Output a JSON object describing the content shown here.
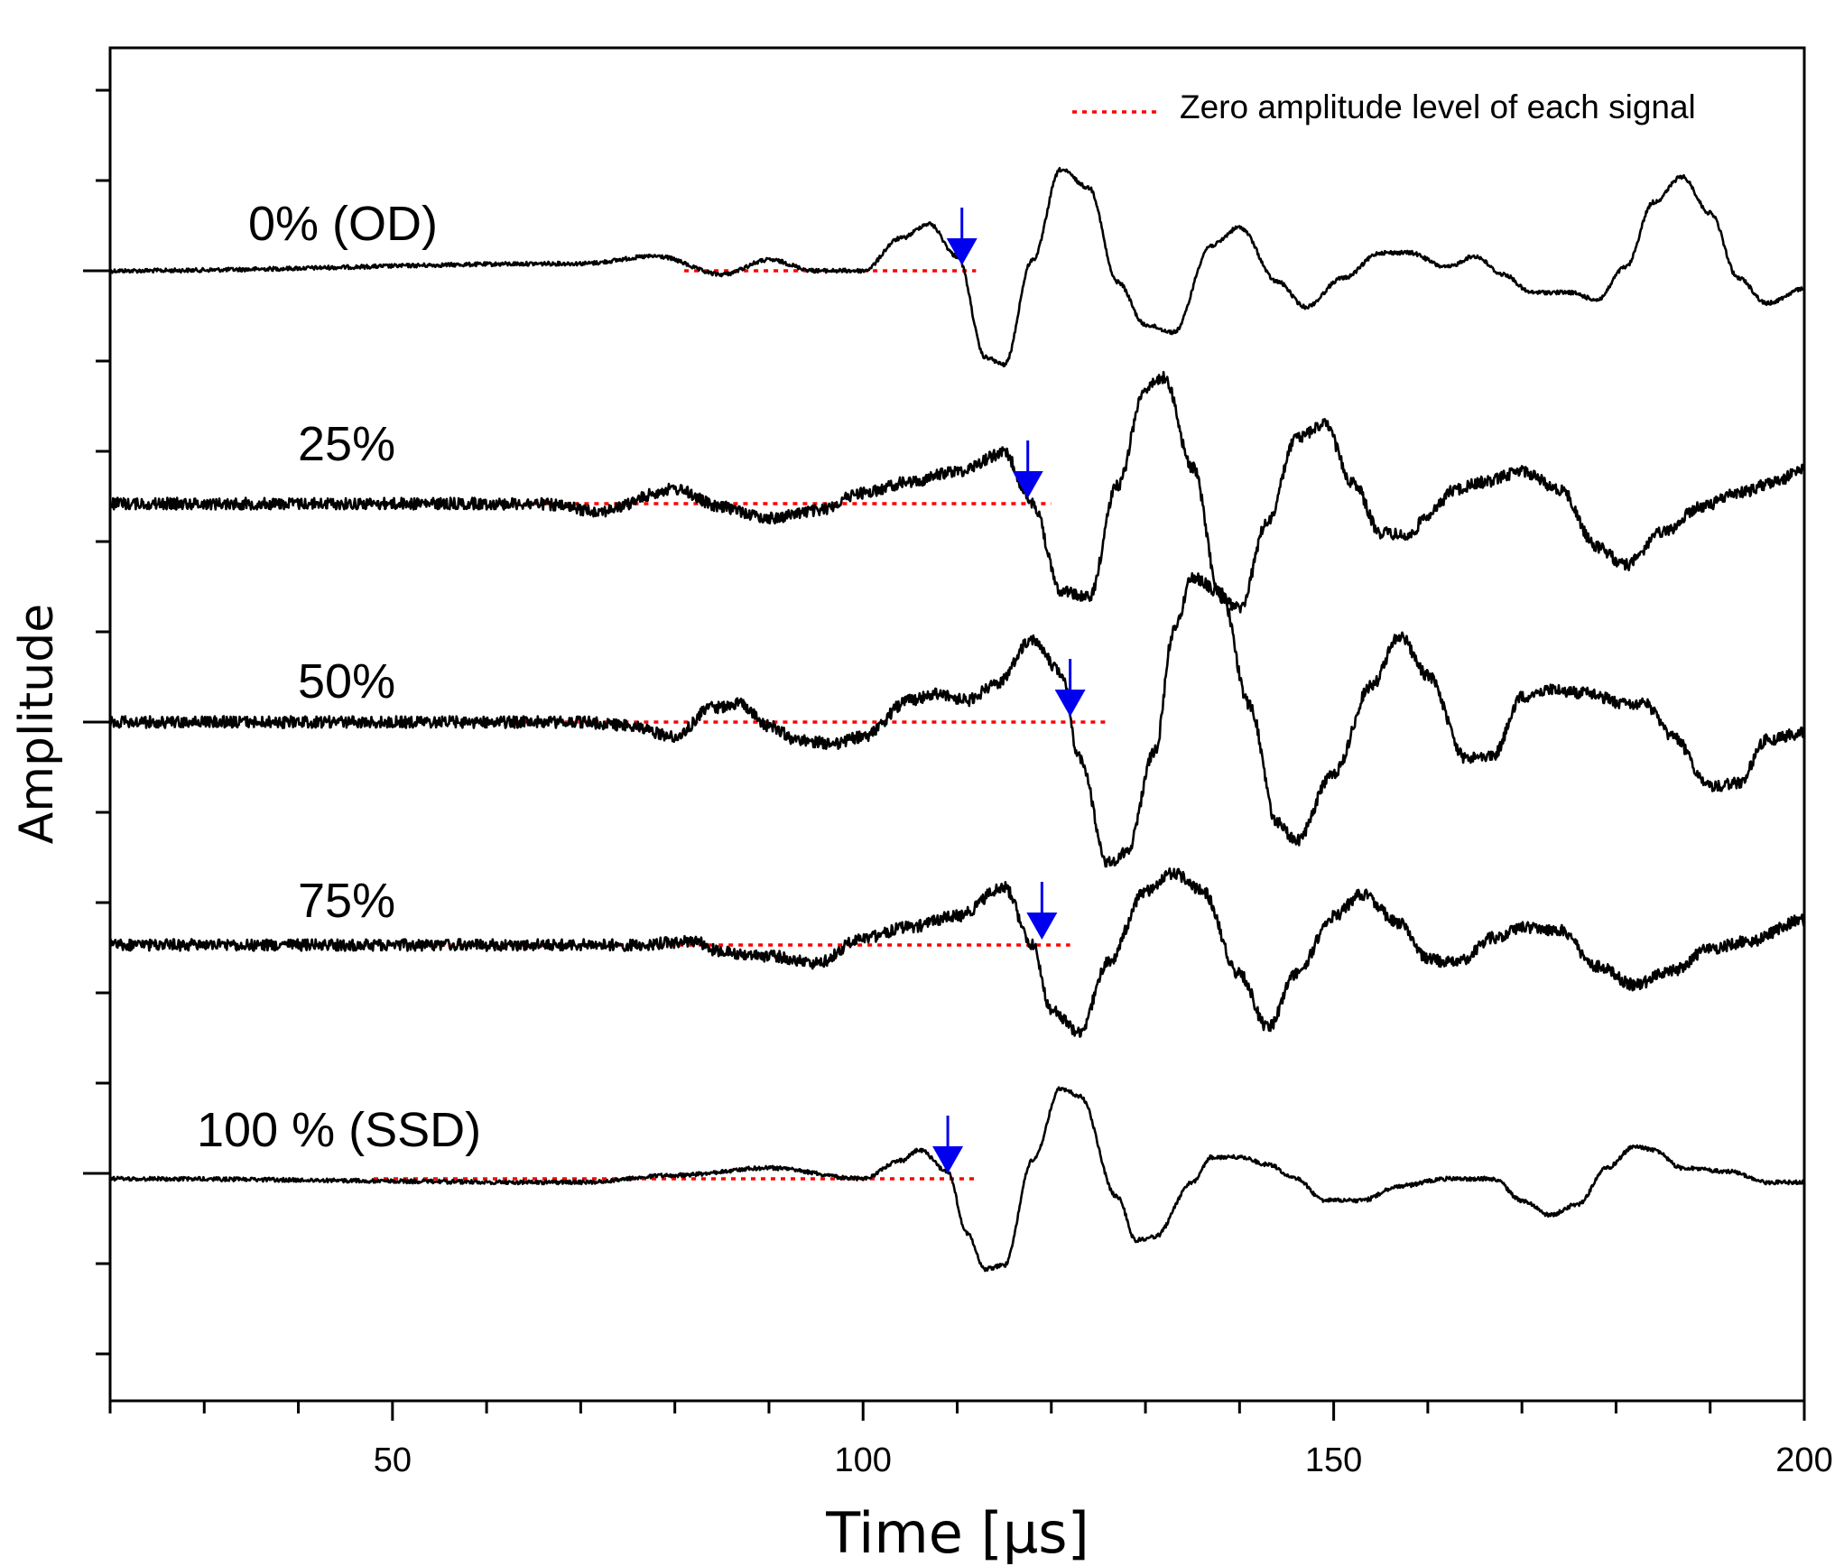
{
  "chart_data": {
    "type": "line",
    "title": "",
    "xlabel": "Time [µs]",
    "ylabel": "Amplitude",
    "xlim": [
      20,
      200
    ],
    "x_ticks": [
      50,
      100,
      150,
      200
    ],
    "x_minor_step": 10,
    "grid": false,
    "legend": {
      "position": "top-right",
      "label": "Zero amplitude level of each signal",
      "style": "red dotted line"
    },
    "series": [
      {
        "name": "0% (OD)",
        "zero_line_range": [
          81,
          112
        ],
        "arrow_time": 110.5,
        "points": [
          [
            20,
            0
          ],
          [
            70,
            0.2
          ],
          [
            78,
            0.4
          ],
          [
            85,
            -0.1
          ],
          [
            90,
            0.3
          ],
          [
            95,
            0
          ],
          [
            100,
            0
          ],
          [
            104,
            0.9
          ],
          [
            107,
            1.3
          ],
          [
            110,
            0.4
          ],
          [
            113,
            -2.4
          ],
          [
            115,
            -2.6
          ],
          [
            118,
            0.3
          ],
          [
            121,
            2.8
          ],
          [
            124,
            2.3
          ],
          [
            127,
            -0.3
          ],
          [
            130,
            -1.5
          ],
          [
            133,
            -1.7
          ],
          [
            137,
            0.7
          ],
          [
            140,
            1.2
          ],
          [
            144,
            -0.3
          ],
          [
            147,
            -1.0
          ],
          [
            151,
            -0.2
          ],
          [
            155,
            0.5
          ],
          [
            158,
            0.5
          ],
          [
            162,
            0.1
          ],
          [
            165,
            0.4
          ],
          [
            168,
            -0.1
          ],
          [
            171,
            -0.6
          ],
          [
            175,
            -0.6
          ],
          [
            178,
            -0.8
          ],
          [
            181,
            0.1
          ],
          [
            184,
            1.9
          ],
          [
            187,
            2.6
          ],
          [
            190,
            1.6
          ],
          [
            193,
            -0.2
          ],
          [
            196,
            -0.9
          ],
          [
            200,
            -0.5
          ]
        ]
      },
      {
        "name": "25%",
        "zero_line_range": [
          63,
          120
        ],
        "arrow_time": 117.5,
        "points": [
          [
            20,
            0
          ],
          [
            65,
            0
          ],
          [
            72,
            -0.2
          ],
          [
            80,
            0.4
          ],
          [
            85,
            -0.1
          ],
          [
            90,
            -0.4
          ],
          [
            95,
            -0.2
          ],
          [
            100,
            0.3
          ],
          [
            105,
            0.6
          ],
          [
            110,
            0.9
          ],
          [
            115,
            1.4
          ],
          [
            118,
            0
          ],
          [
            121,
            -2.4
          ],
          [
            124,
            -2.6
          ],
          [
            127,
            0.5
          ],
          [
            130,
            3.2
          ],
          [
            132,
            3.5
          ],
          [
            135,
            1.0
          ],
          [
            138,
            -2.6
          ],
          [
            140,
            -2.9
          ],
          [
            143,
            -0.5
          ],
          [
            146,
            1.8
          ],
          [
            149,
            2.2
          ],
          [
            152,
            0.6
          ],
          [
            155,
            -0.8
          ],
          [
            158,
            -0.9
          ],
          [
            160,
            -0.3
          ],
          [
            163,
            0.4
          ],
          [
            166,
            0.6
          ],
          [
            170,
            0.9
          ],
          [
            174,
            0.4
          ],
          [
            178,
            -1.2
          ],
          [
            181,
            -1.7
          ],
          [
            185,
            -0.8
          ],
          [
            189,
            -0.1
          ],
          [
            193,
            0.3
          ],
          [
            197,
            0.6
          ],
          [
            200,
            1.0
          ]
        ]
      },
      {
        "name": "50%",
        "zero_line_range": [
          63,
          126
        ],
        "arrow_time": 122,
        "points": [
          [
            20,
            0
          ],
          [
            70,
            0
          ],
          [
            75,
            -0.1
          ],
          [
            80,
            -0.4
          ],
          [
            84,
            0.4
          ],
          [
            87,
            0.5
          ],
          [
            90,
            -0.1
          ],
          [
            93,
            -0.5
          ],
          [
            97,
            -0.6
          ],
          [
            100,
            -0.4
          ],
          [
            105,
            0.6
          ],
          [
            108,
            0.8
          ],
          [
            111,
            0.6
          ],
          [
            114,
            1.0
          ],
          [
            118,
            2.3
          ],
          [
            121,
            1.4
          ],
          [
            123,
            -1.0
          ],
          [
            126,
            -3.9
          ],
          [
            128,
            -3.6
          ],
          [
            131,
            -0.8
          ],
          [
            133,
            2.5
          ],
          [
            135,
            4.0
          ],
          [
            138,
            3.6
          ],
          [
            141,
            0.5
          ],
          [
            144,
            -2.8
          ],
          [
            146,
            -3.3
          ],
          [
            150,
            -1.4
          ],
          [
            154,
            1.0
          ],
          [
            157,
            2.4
          ],
          [
            160,
            1.3
          ],
          [
            164,
            -1.0
          ],
          [
            167,
            -0.9
          ],
          [
            170,
            0.7
          ],
          [
            173,
            0.9
          ],
          [
            177,
            0.8
          ],
          [
            181,
            0.5
          ],
          [
            183,
            0.5
          ],
          [
            186,
            -0.4
          ],
          [
            190,
            -1.8
          ],
          [
            193,
            -1.7
          ],
          [
            196,
            -0.5
          ],
          [
            200,
            -0.3
          ]
        ]
      },
      {
        "name": "75%",
        "zero_line_range": [
          53,
          122
        ],
        "arrow_time": 119,
        "points": [
          [
            20,
            0
          ],
          [
            75,
            0
          ],
          [
            82,
            0.1
          ],
          [
            85,
            -0.2
          ],
          [
            90,
            -0.3
          ],
          [
            95,
            -0.5
          ],
          [
            100,
            0.2
          ],
          [
            105,
            0.5
          ],
          [
            110,
            0.8
          ],
          [
            115,
            1.6
          ],
          [
            118,
            0
          ],
          [
            120,
            -1.8
          ],
          [
            123,
            -2.4
          ],
          [
            126,
            -0.5
          ],
          [
            130,
            1.5
          ],
          [
            133,
            2.0
          ],
          [
            136,
            1.5
          ],
          [
            140,
            -0.8
          ],
          [
            143,
            -2.3
          ],
          [
            146,
            -0.8
          ],
          [
            150,
            0.8
          ],
          [
            153,
            1.4
          ],
          [
            157,
            0.6
          ],
          [
            160,
            -0.4
          ],
          [
            163,
            -0.5
          ],
          [
            167,
            0.2
          ],
          [
            170,
            0.5
          ],
          [
            174,
            0.4
          ],
          [
            178,
            -0.6
          ],
          [
            182,
            -1.1
          ],
          [
            186,
            -0.7
          ],
          [
            190,
            -0.1
          ],
          [
            194,
            0.1
          ],
          [
            200,
            0.7
          ]
        ]
      },
      {
        "name": "100 % (SSD)",
        "zero_line_range": [
          48,
          112
        ],
        "arrow_time": 109,
        "points": [
          [
            20,
            0
          ],
          [
            70,
            -0.1
          ],
          [
            80,
            0.1
          ],
          [
            90,
            0.3
          ],
          [
            100,
            0
          ],
          [
            104,
            0.5
          ],
          [
            106,
            0.8
          ],
          [
            109,
            0.2
          ],
          [
            111,
            -1.5
          ],
          [
            113,
            -2.5
          ],
          [
            115,
            -2.4
          ],
          [
            118,
            0.5
          ],
          [
            121,
            2.5
          ],
          [
            123,
            2.3
          ],
          [
            127,
            -0.5
          ],
          [
            129,
            -1.7
          ],
          [
            131,
            -1.6
          ],
          [
            135,
            -0.1
          ],
          [
            137,
            0.6
          ],
          [
            140,
            0.6
          ],
          [
            143,
            0.4
          ],
          [
            146,
            0
          ],
          [
            149,
            -0.6
          ],
          [
            153,
            -0.6
          ],
          [
            157,
            -0.2
          ],
          [
            162,
            0
          ],
          [
            167,
            0
          ],
          [
            170,
            -0.6
          ],
          [
            173,
            -1.0
          ],
          [
            176,
            -0.7
          ],
          [
            179,
            0.3
          ],
          [
            182,
            0.9
          ],
          [
            184,
            0.8
          ],
          [
            187,
            0.3
          ],
          [
            192,
            0.2
          ],
          [
            196,
            -0.1
          ],
          [
            200,
            -0.1
          ]
        ]
      }
    ]
  }
}
